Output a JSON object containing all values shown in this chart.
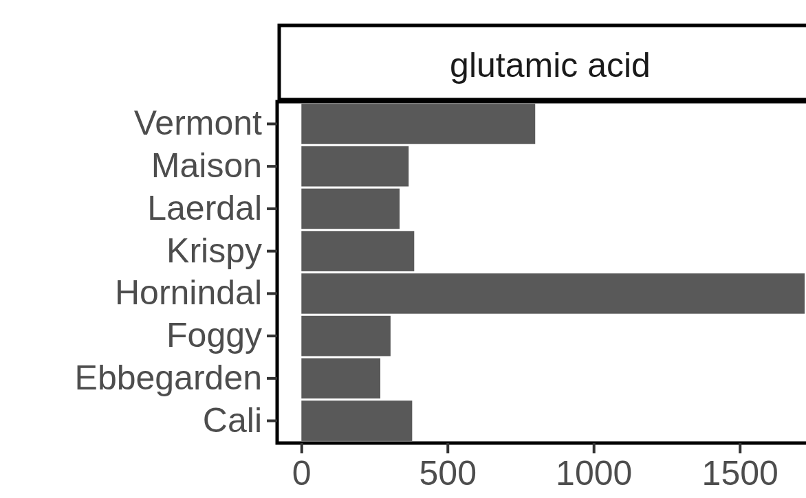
{
  "chart_data": {
    "type": "bar",
    "title": "glutamic acid",
    "orientation": "horizontal",
    "categories": [
      "Vermont",
      "Maison",
      "Laerdal",
      "Krispy",
      "Hornindal",
      "Foggy",
      "Ebbegarden",
      "Cali"
    ],
    "values": [
      800,
      367,
      336,
      386,
      1722,
      305,
      270,
      379
    ],
    "color": "#595959",
    "xlim": [
      -83,
      1736
    ],
    "xticks": [
      0,
      500,
      1000,
      1500
    ]
  }
}
